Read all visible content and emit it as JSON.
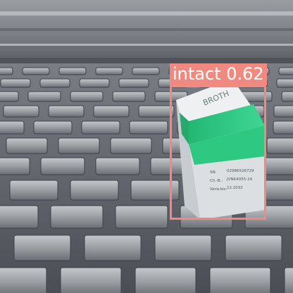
{
  "detection": {
    "class_label": "intact",
    "confidence": "0.62",
    "box_color": "#f08a80",
    "label_text_color": "#ffffff"
  },
  "product_label": {
    "brand_fragment": "BROTH",
    "lines": [
      {
        "key": "SN:",
        "value": "02986526729"
      },
      {
        "key": "Ch.-B.:",
        "value": "JVNK4055-24"
      },
      {
        "key": "Verw.bis:",
        "value": "12.2032"
      }
    ]
  },
  "colors": {
    "tray": "#5e6268",
    "package_white": "#e7e9ea",
    "package_green": "#2fc883",
    "background": "#6d7177"
  }
}
